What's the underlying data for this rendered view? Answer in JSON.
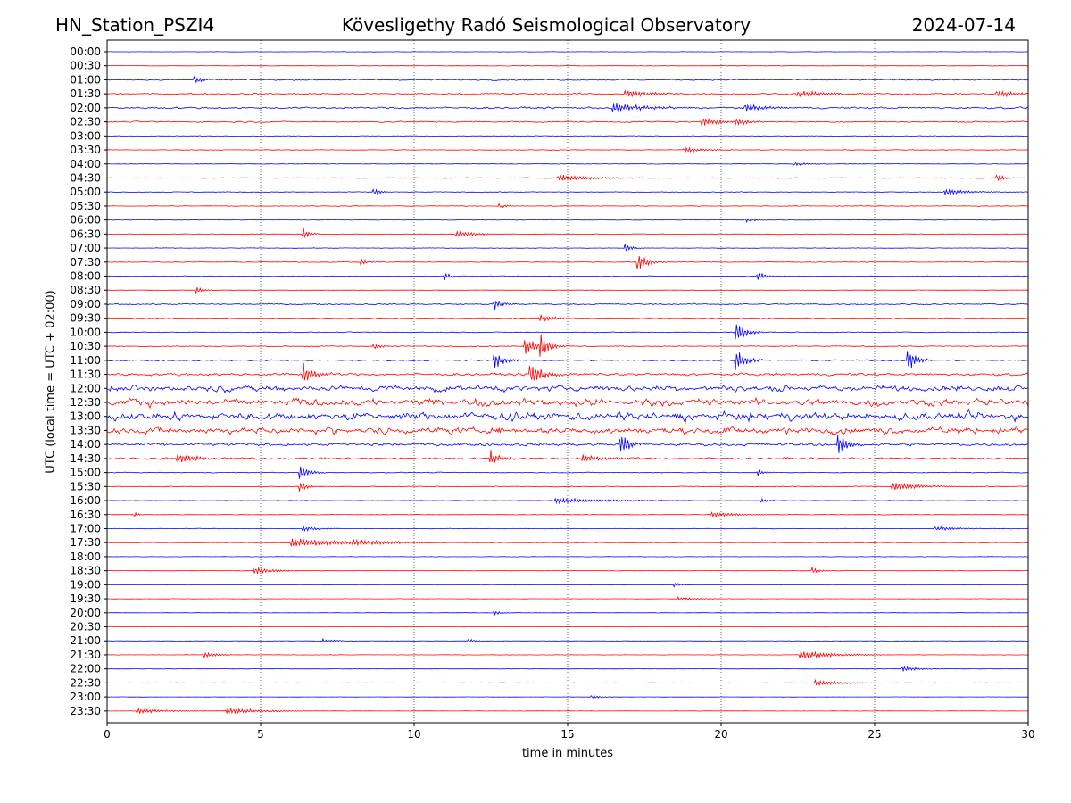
{
  "header": {
    "station": "HN_Station_PSZI4",
    "observatory": "Kövesligethy Radó Seismological Observatory",
    "date": "2024-07-14"
  },
  "chart_data": {
    "type": "line",
    "title": "Kövesligethy Radó Seismological Observatory",
    "xlabel": "time in minutes",
    "ylabel": "UTC (local time = UTC + 02:00)",
    "xlim": [
      0,
      30
    ],
    "x_ticks": [
      0,
      5,
      10,
      15,
      20,
      25,
      30
    ],
    "x_grid": "dotted vertical lines at 5, 10, 15, 20, 25",
    "trace_colors": [
      "#0000ff",
      "#ff0000"
    ],
    "color_rule": "alternating per row: full hour blue, half hour red",
    "rows": [
      {
        "label": "00:00",
        "activity": 0.05,
        "events": []
      },
      {
        "label": "00:30",
        "activity": 0.08,
        "events": []
      },
      {
        "label": "01:00",
        "activity": 0.2,
        "events": [
          {
            "t": 2.85,
            "amp": 0.7,
            "dur": 0.2
          }
        ]
      },
      {
        "label": "01:30",
        "activity": 0.25,
        "events": [
          {
            "t": 16.9,
            "amp": 0.5,
            "dur": 0.8
          },
          {
            "t": 22.5,
            "amp": 0.5,
            "dur": 0.8
          },
          {
            "t": 29.0,
            "amp": 0.5,
            "dur": 0.6
          }
        ]
      },
      {
        "label": "02:00",
        "activity": 0.3,
        "events": [
          {
            "t": 16.5,
            "amp": 0.6,
            "dur": 1.0
          },
          {
            "t": 20.8,
            "amp": 0.6,
            "dur": 0.6
          }
        ]
      },
      {
        "label": "02:30",
        "activity": 0.22,
        "events": [
          {
            "t": 19.4,
            "amp": 0.7,
            "dur": 0.5
          },
          {
            "t": 20.5,
            "amp": 0.6,
            "dur": 0.4
          }
        ]
      },
      {
        "label": "03:00",
        "activity": 0.1,
        "events": []
      },
      {
        "label": "03:30",
        "activity": 0.1,
        "events": [
          {
            "t": 18.8,
            "amp": 0.4,
            "dur": 0.6
          }
        ]
      },
      {
        "label": "04:00",
        "activity": 0.08,
        "events": [
          {
            "t": 22.4,
            "amp": 0.3,
            "dur": 0.4
          }
        ]
      },
      {
        "label": "04:30",
        "activity": 0.12,
        "events": [
          {
            "t": 14.7,
            "amp": 0.5,
            "dur": 1.0
          },
          {
            "t": 29.0,
            "amp": 0.7,
            "dur": 0.2
          }
        ]
      },
      {
        "label": "05:00",
        "activity": 0.1,
        "events": [
          {
            "t": 8.7,
            "amp": 0.5,
            "dur": 0.2
          },
          {
            "t": 27.3,
            "amp": 0.4,
            "dur": 0.8
          }
        ]
      },
      {
        "label": "05:30",
        "activity": 0.1,
        "events": [
          {
            "t": 12.8,
            "amp": 0.4,
            "dur": 0.2
          }
        ]
      },
      {
        "label": "06:00",
        "activity": 0.08,
        "events": [
          {
            "t": 20.8,
            "amp": 0.3,
            "dur": 0.3
          }
        ]
      },
      {
        "label": "06:30",
        "activity": 0.1,
        "events": [
          {
            "t": 6.4,
            "amp": 0.8,
            "dur": 0.2
          },
          {
            "t": 11.4,
            "amp": 0.5,
            "dur": 0.6
          }
        ]
      },
      {
        "label": "07:00",
        "activity": 0.08,
        "events": [
          {
            "t": 16.9,
            "amp": 0.6,
            "dur": 0.2
          }
        ]
      },
      {
        "label": "07:30",
        "activity": 0.1,
        "events": [
          {
            "t": 17.3,
            "amp": 1.4,
            "dur": 0.3
          },
          {
            "t": 8.3,
            "amp": 0.5,
            "dur": 0.2
          }
        ]
      },
      {
        "label": "08:00",
        "activity": 0.1,
        "events": [
          {
            "t": 21.2,
            "amp": 0.7,
            "dur": 0.2
          },
          {
            "t": 11.0,
            "amp": 0.5,
            "dur": 0.2
          }
        ]
      },
      {
        "label": "08:30",
        "activity": 0.06,
        "events": [
          {
            "t": 2.9,
            "amp": 0.6,
            "dur": 0.2
          }
        ]
      },
      {
        "label": "09:00",
        "activity": 0.2,
        "events": [
          {
            "t": 12.6,
            "amp": 0.8,
            "dur": 0.3
          }
        ]
      },
      {
        "label": "09:30",
        "activity": 0.15,
        "events": [
          {
            "t": 14.1,
            "amp": 0.6,
            "dur": 0.4
          }
        ]
      },
      {
        "label": "10:00",
        "activity": 0.12,
        "events": [
          {
            "t": 20.5,
            "amp": 1.5,
            "dur": 0.3
          }
        ]
      },
      {
        "label": "10:30",
        "activity": 0.15,
        "events": [
          {
            "t": 13.6,
            "amp": 1.6,
            "dur": 0.3
          },
          {
            "t": 14.1,
            "amp": 1.8,
            "dur": 0.3
          },
          {
            "t": 8.7,
            "amp": 0.5,
            "dur": 0.2
          }
        ]
      },
      {
        "label": "11:00",
        "activity": 0.2,
        "events": [
          {
            "t": 12.6,
            "amp": 1.4,
            "dur": 0.3
          },
          {
            "t": 20.5,
            "amp": 1.6,
            "dur": 0.3
          },
          {
            "t": 26.1,
            "amp": 1.4,
            "dur": 0.3
          }
        ]
      },
      {
        "label": "11:30",
        "activity": 0.4,
        "events": [
          {
            "t": 6.4,
            "amp": 1.6,
            "dur": 0.3
          },
          {
            "t": 13.8,
            "amp": 1.5,
            "dur": 0.4
          }
        ]
      },
      {
        "label": "12:00",
        "activity": 0.9,
        "events": []
      },
      {
        "label": "12:30",
        "activity": 1.1,
        "events": []
      },
      {
        "label": "13:00",
        "activity": 1.25,
        "events": []
      },
      {
        "label": "13:30",
        "activity": 1.0,
        "events": []
      },
      {
        "label": "14:00",
        "activity": 0.45,
        "events": [
          {
            "t": 16.7,
            "amp": 1.6,
            "dur": 0.3
          },
          {
            "t": 23.8,
            "amp": 1.6,
            "dur": 0.3
          }
        ]
      },
      {
        "label": "14:30",
        "activity": 0.3,
        "events": [
          {
            "t": 2.3,
            "amp": 0.7,
            "dur": 0.6
          },
          {
            "t": 15.5,
            "amp": 0.5,
            "dur": 0.8
          },
          {
            "t": 12.5,
            "amp": 1.2,
            "dur": 0.3
          }
        ]
      },
      {
        "label": "15:00",
        "activity": 0.12,
        "events": [
          {
            "t": 6.3,
            "amp": 1.0,
            "dur": 0.3
          },
          {
            "t": 21.2,
            "amp": 0.4,
            "dur": 0.2
          }
        ]
      },
      {
        "label": "15:30",
        "activity": 0.12,
        "events": [
          {
            "t": 25.6,
            "amp": 0.6,
            "dur": 0.8
          },
          {
            "t": 6.3,
            "amp": 0.8,
            "dur": 0.2
          }
        ]
      },
      {
        "label": "16:00",
        "activity": 0.08,
        "events": [
          {
            "t": 14.6,
            "amp": 0.4,
            "dur": 1.5
          },
          {
            "t": 21.3,
            "amp": 0.4,
            "dur": 0.2
          }
        ]
      },
      {
        "label": "16:30",
        "activity": 0.08,
        "events": [
          {
            "t": 19.7,
            "amp": 0.4,
            "dur": 0.8
          },
          {
            "t": 0.9,
            "amp": 0.3,
            "dur": 0.2
          }
        ]
      },
      {
        "label": "17:00",
        "activity": 0.08,
        "events": [
          {
            "t": 6.4,
            "amp": 0.4,
            "dur": 0.4
          },
          {
            "t": 27.0,
            "amp": 0.3,
            "dur": 0.8
          }
        ]
      },
      {
        "label": "17:30",
        "activity": 0.08,
        "events": [
          {
            "t": 6.0,
            "amp": 0.7,
            "dur": 1.5
          },
          {
            "t": 8.0,
            "amp": 0.3,
            "dur": 1.5
          }
        ]
      },
      {
        "label": "18:00",
        "activity": 0.06,
        "events": []
      },
      {
        "label": "18:30",
        "activity": 0.07,
        "events": [
          {
            "t": 4.8,
            "amp": 0.5,
            "dur": 0.6
          },
          {
            "t": 23.0,
            "amp": 0.5,
            "dur": 0.2
          }
        ]
      },
      {
        "label": "19:00",
        "activity": 0.05,
        "events": [
          {
            "t": 18.5,
            "amp": 0.3,
            "dur": 0.2
          }
        ]
      },
      {
        "label": "19:30",
        "activity": 0.05,
        "events": [
          {
            "t": 18.6,
            "amp": 0.3,
            "dur": 0.5
          }
        ]
      },
      {
        "label": "20:00",
        "activity": 0.05,
        "events": [
          {
            "t": 12.6,
            "amp": 0.4,
            "dur": 0.2
          }
        ]
      },
      {
        "label": "20:30",
        "activity": 0.05,
        "events": []
      },
      {
        "label": "21:00",
        "activity": 0.06,
        "events": [
          {
            "t": 7.0,
            "amp": 0.3,
            "dur": 0.4
          },
          {
            "t": 11.8,
            "amp": 0.3,
            "dur": 0.2
          }
        ]
      },
      {
        "label": "21:30",
        "activity": 0.06,
        "events": [
          {
            "t": 3.2,
            "amp": 0.4,
            "dur": 0.4
          },
          {
            "t": 22.6,
            "amp": 0.6,
            "dur": 1.0
          }
        ]
      },
      {
        "label": "22:00",
        "activity": 0.05,
        "events": [
          {
            "t": 25.9,
            "amp": 0.4,
            "dur": 0.5
          }
        ]
      },
      {
        "label": "22:30",
        "activity": 0.05,
        "events": [
          {
            "t": 23.1,
            "amp": 0.4,
            "dur": 0.8
          }
        ]
      },
      {
        "label": "23:00",
        "activity": 0.04,
        "events": [
          {
            "t": 15.8,
            "amp": 0.3,
            "dur": 0.3
          }
        ]
      },
      {
        "label": "23:30",
        "activity": 0.05,
        "events": [
          {
            "t": 1.0,
            "amp": 0.4,
            "dur": 0.8
          },
          {
            "t": 3.9,
            "amp": 0.5,
            "dur": 1.0
          }
        ]
      }
    ]
  }
}
